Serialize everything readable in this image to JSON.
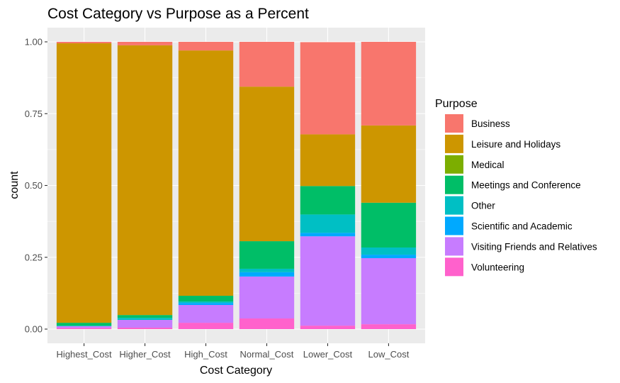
{
  "chart_data": {
    "type": "bar",
    "stacked": true,
    "title": "Cost Category vs Purpose as a Percent",
    "xlabel": "Cost Category",
    "ylabel": "count",
    "ylim": [
      0,
      1
    ],
    "yticks": [
      0,
      0.25,
      0.5,
      0.75,
      1.0
    ],
    "ytick_labels": [
      "0.00",
      "0.25",
      "0.50",
      "0.75",
      "1.00"
    ],
    "grid": true,
    "legend_title": "Purpose",
    "legend_position": "right",
    "categories": [
      "Highest_Cost",
      "Higher_Cost",
      "High_Cost",
      "Normal_Cost",
      "Lower_Cost",
      "Low_Cost"
    ],
    "series": [
      {
        "name": "Business",
        "color": "#F8766D",
        "values": [
          0.005,
          0.012,
          0.03,
          0.156,
          0.321,
          0.291
        ]
      },
      {
        "name": "Leisure and Holidays",
        "color": "#CD9600",
        "values": [
          0.973,
          0.939,
          0.854,
          0.538,
          0.18,
          0.269
        ]
      },
      {
        "name": "Medical",
        "color": "#7CAE00",
        "values": [
          0,
          0,
          0,
          0,
          0,
          0
        ]
      },
      {
        "name": "Meetings and Conference",
        "color": "#00BE67",
        "values": [
          0.01,
          0.01,
          0.02,
          0.096,
          0.099,
          0.156
        ]
      },
      {
        "name": "Other",
        "color": "#00BFC4",
        "values": [
          0.002,
          0.007,
          0.005,
          0.012,
          0.064,
          0.025
        ]
      },
      {
        "name": "Scientific and Academic",
        "color": "#00A9FF",
        "values": [
          0,
          0,
          0.007,
          0.015,
          0.012,
          0.012
        ]
      },
      {
        "name": "Visiting Friends and Relatives",
        "color": "#C77CFF",
        "values": [
          0.006,
          0.027,
          0.062,
          0.146,
          0.311,
          0.23
        ]
      },
      {
        "name": "Volunteering",
        "color": "#FF61CC",
        "values": [
          0.004,
          0.005,
          0.022,
          0.037,
          0.012,
          0.017
        ]
      }
    ]
  },
  "colors": {
    "panel_background": "#EBEBEB",
    "grid_line": "#FFFFFF",
    "tick_label": "#4D4D4D"
  }
}
